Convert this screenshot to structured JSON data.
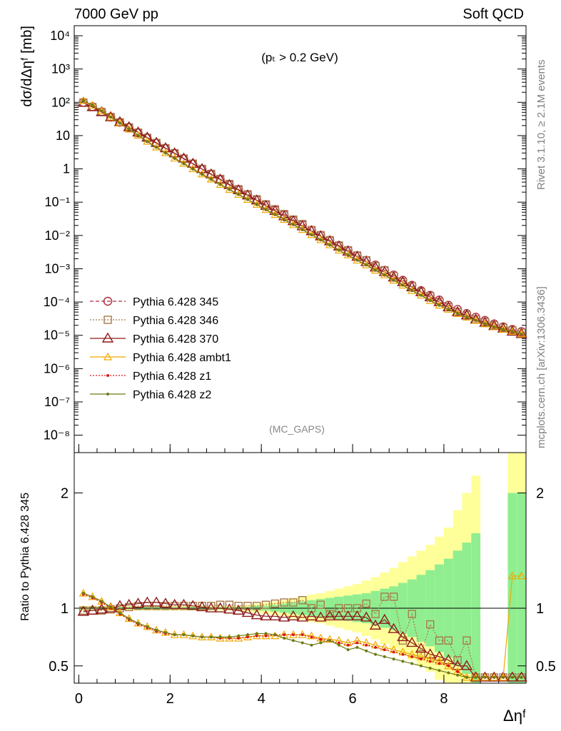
{
  "header": {
    "left": "7000 GeV pp",
    "right": "Soft QCD"
  },
  "side_labels": {
    "rivet": "Rivet 3.1.10, ≥ 2.1M events",
    "mcplots": "mcplots.cern.ch [arXiv:1306.3436]"
  },
  "annotations": {
    "cut": "(p_T > 0.2 GeV)",
    "analysis": "(MC_GAPS)"
  },
  "axes": {
    "ylabel_top": "dσ/dΔη^F [mb]",
    "ylabel_bottom": "Ratio to Pythia 6.428 345",
    "xlabel": "Δη^F"
  },
  "colors": {
    "p345": "#b02a3b",
    "p346": "#a87a4a",
    "p370": "#8e1a1a",
    "ambt1": "#f0a800",
    "z1": "#d81818",
    "z2": "#6e7a14",
    "band_inner": "#90ee90",
    "band_outer": "#ffff99"
  },
  "legend": [
    {
      "label": "Pythia 6.428 345"
    },
    {
      "label": "Pythia 6.428 346"
    },
    {
      "label": "Pythia 6.428 370"
    },
    {
      "label": "Pythia 6.428 ambt1"
    },
    {
      "label": "Pythia 6.428 z1"
    },
    {
      "label": "Pythia 6.428 z2"
    }
  ],
  "chart_data": [
    {
      "type": "scatter",
      "log_y": true,
      "xlim": [
        -0.1,
        9.8
      ],
      "ylim": [
        3e-09,
        20000.0
      ],
      "x_ticks": [
        0,
        2,
        4,
        6,
        8
      ],
      "y_ticks": [
        "10^4",
        "10^3",
        "10^2",
        "10",
        "1",
        "10^-1",
        "10^-2",
        "10^-3",
        "10^-4",
        "10^-5",
        "10^-6",
        "10^-7",
        "10^-8"
      ],
      "x": [
        0.1,
        0.3,
        0.5,
        0.7,
        0.9,
        1.1,
        1.3,
        1.5,
        1.7,
        1.9,
        2.1,
        2.3,
        2.5,
        2.7,
        2.9,
        3.1,
        3.3,
        3.5,
        3.7,
        3.9,
        4.1,
        4.3,
        4.5,
        4.7,
        4.9,
        5.1,
        5.3,
        5.5,
        5.7,
        5.9,
        6.1,
        6.3,
        6.5,
        6.7,
        6.9,
        7.1,
        7.3,
        7.5,
        7.7,
        7.9,
        8.1,
        8.3,
        8.5,
        8.7,
        8.9,
        9.1,
        9.3,
        9.5,
        9.7
      ],
      "series": [
        {
          "name": "Pythia 6.428 345",
          "values": [
            100,
            74,
            52,
            36,
            25,
            17.5,
            12,
            8.4,
            5.9,
            4.1,
            2.9,
            2.0,
            1.4,
            0.98,
            0.69,
            0.48,
            0.34,
            0.24,
            0.17,
            0.12,
            0.084,
            0.059,
            0.042,
            0.029,
            0.021,
            0.0145,
            0.0102,
            0.0072,
            0.005,
            0.0036,
            0.0025,
            0.0018,
            0.0013,
            0.0009,
            0.00065,
            0.00045,
            0.00032,
            0.00022,
            0.00016,
            0.000115,
            8e-05,
            6e-05,
            4.5e-05,
            3.5e-05,
            2.8e-05,
            2.2e-05,
            1.8e-05,
            1.5e-05,
            1.3e-05
          ]
        },
        {
          "name": "Pythia 6.428 346",
          "values": [
            98,
            72,
            51,
            36,
            25,
            17.7,
            12.3,
            8.6,
            6.0,
            4.2,
            2.95,
            2.05,
            1.44,
            1.0,
            0.71,
            0.5,
            0.35,
            0.245,
            0.172,
            0.122,
            0.086,
            0.061,
            0.044,
            0.03,
            0.022,
            0.0145,
            0.0102,
            0.0072,
            0.005,
            0.0036,
            0.0025,
            0.0018,
            0.0012,
            0.0009,
            0.0006,
            0.0004,
            0.0003,
            0.0002,
            0.00015,
            0.0001,
            7e-05,
            5e-05,
            4e-05,
            3e-05,
            2.5e-05,
            2e-05,
            1.7e-05,
            1.4e-05,
            1.2e-05
          ]
        },
        {
          "name": "Pythia 6.428 370",
          "values": [
            97,
            72,
            51,
            36,
            25.5,
            18,
            12.5,
            8.8,
            6.1,
            4.2,
            2.95,
            2.06,
            1.43,
            0.99,
            0.69,
            0.48,
            0.33,
            0.23,
            0.16,
            0.113,
            0.078,
            0.055,
            0.038,
            0.027,
            0.019,
            0.0135,
            0.0095,
            0.0067,
            0.0047,
            0.0033,
            0.0023,
            0.0016,
            0.0011,
            0.0008,
            0.00055,
            0.0004,
            0.00028,
            0.0002,
            0.00014,
            0.0001,
            7e-05,
            5e-05,
            4e-05,
            3e-05,
            2.4e-05,
            1.9e-05,
            1.6e-05,
            1.3e-05,
            1.1e-05
          ]
        },
        {
          "name": "Pythia 6.428 ambt1",
          "values": [
            112,
            81,
            55,
            36,
            24,
            15.5,
            10.2,
            6.7,
            4.5,
            3.05,
            2.1,
            1.45,
            1.0,
            0.7,
            0.49,
            0.34,
            0.24,
            0.17,
            0.12,
            0.085,
            0.06,
            0.042,
            0.03,
            0.021,
            0.015,
            0.0105,
            0.0074,
            0.0052,
            0.0036,
            0.0026,
            0.0018,
            0.0013,
            0.0009,
            0.00065,
            0.00045,
            0.00032,
            0.00022,
            0.00016,
            0.00011,
            8e-05,
            6e-05,
            4.5e-05,
            3.5e-05,
            2.8e-05,
            2.2e-05,
            1.8e-05,
            1.5e-05,
            1.3e-05,
            1.1e-05
          ]
        },
        {
          "name": "Pythia 6.428 z1",
          "values": [
            111,
            80,
            54,
            35.5,
            23.5,
            15.3,
            10,
            6.6,
            4.45,
            3.0,
            2.07,
            1.43,
            0.99,
            0.69,
            0.48,
            0.34,
            0.24,
            0.17,
            0.12,
            0.084,
            0.059,
            0.042,
            0.029,
            0.021,
            0.0148,
            0.0104,
            0.0073,
            0.0051,
            0.0036,
            0.0025,
            0.0018,
            0.0013,
            0.0009,
            0.00064,
            0.00045,
            0.00032,
            0.00022,
            0.00016,
            0.00011,
            8e-05,
            6e-05,
            4.5e-05,
            3.5e-05,
            2.8e-05,
            2.2e-05,
            1.8e-05,
            1.5e-05,
            1.3e-05,
            1.1e-05
          ]
        },
        {
          "name": "Pythia 6.428 z2",
          "values": [
            112,
            81,
            55,
            36,
            23.8,
            15.5,
            10.1,
            6.6,
            4.45,
            3.0,
            2.06,
            1.42,
            0.98,
            0.68,
            0.48,
            0.34,
            0.24,
            0.17,
            0.12,
            0.085,
            0.06,
            0.042,
            0.03,
            0.021,
            0.015,
            0.0105,
            0.0074,
            0.0052,
            0.0036,
            0.0026,
            0.0018,
            0.0013,
            0.0009,
            0.00065,
            0.00045,
            0.00032,
            0.00022,
            0.00016,
            0.00011,
            8e-05,
            6e-05,
            4.5e-05,
            3.5e-05,
            2.8e-05,
            2.2e-05,
            1.8e-05,
            1.5e-05,
            1.3e-05,
            1.1e-05
          ]
        }
      ]
    },
    {
      "type": "scatter",
      "xlim": [
        -0.1,
        9.8
      ],
      "ylim": [
        0.35,
        2.35
      ],
      "x_ticks": [
        0,
        2,
        4,
        6,
        8
      ],
      "y_ticks": [
        0.5,
        1,
        2
      ],
      "reference_line": 1,
      "x": [
        0.1,
        0.3,
        0.5,
        0.7,
        0.9,
        1.1,
        1.3,
        1.5,
        1.7,
        1.9,
        2.1,
        2.3,
        2.5,
        2.7,
        2.9,
        3.1,
        3.3,
        3.5,
        3.7,
        3.9,
        4.1,
        4.3,
        4.5,
        4.7,
        4.9,
        5.1,
        5.3,
        5.5,
        5.7,
        5.9,
        6.1,
        6.3,
        6.5,
        6.7,
        6.9,
        7.1,
        7.3,
        7.5,
        7.7,
        7.9,
        8.1,
        8.3,
        8.5,
        8.7,
        8.9,
        9.1,
        9.3,
        9.5,
        9.7
      ],
      "bands": {
        "inner": [
          0.01,
          0.01,
          0.01,
          0.01,
          0.01,
          0.01,
          0.01,
          0.01,
          0.01,
          0.01,
          0.01,
          0.01,
          0.01,
          0.01,
          0.01,
          0.01,
          0.01,
          0.01,
          0.01,
          0.02,
          0.02,
          0.03,
          0.04,
          0.05,
          0.06,
          0.07,
          0.08,
          0.09,
          0.1,
          0.11,
          0.12,
          0.13,
          0.15,
          0.17,
          0.19,
          0.22,
          0.25,
          0.29,
          0.33,
          0.38,
          0.43,
          0.5,
          0.57,
          0.65,
          0.0,
          0.0,
          0.0,
          1.0,
          1.0
        ],
        "outer": [
          0.02,
          0.02,
          0.02,
          0.02,
          0.02,
          0.02,
          0.02,
          0.02,
          0.02,
          0.02,
          0.02,
          0.02,
          0.02,
          0.02,
          0.02,
          0.02,
          0.02,
          0.02,
          0.03,
          0.04,
          0.05,
          0.06,
          0.07,
          0.09,
          0.1,
          0.12,
          0.13,
          0.15,
          0.17,
          0.19,
          0.21,
          0.24,
          0.27,
          0.31,
          0.35,
          0.4,
          0.45,
          0.5,
          0.55,
          0.62,
          0.7,
          0.85,
          1.0,
          1.15,
          0.0,
          0.0,
          0.0,
          1.5,
          1.5
        ]
      },
      "series": [
        {
          "name": "Pythia 6.428 346",
          "values": [
            0.98,
            0.98,
            0.98,
            0.99,
            1.0,
            1.01,
            1.02,
            1.02,
            1.02,
            1.02,
            1.02,
            1.02,
            1.02,
            1.02,
            1.02,
            1.03,
            1.03,
            1.02,
            1.02,
            1.02,
            1.03,
            1.04,
            1.05,
            1.05,
            1.07,
            1.0,
            1.03,
            0.95,
            1.0,
            1.0,
            1.0,
            1.04,
            0.95,
            1.1,
            1.1,
            0.72,
            0.95,
            0.6,
            0.86,
            0.72,
            0.72,
            0.55,
            0.72,
            0.4,
            0.4,
            0.4,
            0.4,
            0.4,
            0.4
          ]
        },
        {
          "name": "Pythia 6.428 370",
          "values": [
            0.97,
            0.98,
            0.99,
            1.0,
            1.02,
            1.03,
            1.04,
            1.05,
            1.05,
            1.04,
            1.03,
            1.03,
            1.02,
            1.01,
            1.0,
            1.0,
            0.99,
            0.98,
            0.96,
            0.94,
            0.93,
            0.93,
            0.92,
            0.93,
            0.92,
            0.93,
            0.92,
            0.93,
            0.93,
            0.93,
            0.93,
            0.92,
            0.85,
            0.9,
            0.82,
            0.75,
            0.7,
            0.65,
            0.6,
            0.58,
            0.55,
            0.5,
            0.5,
            0.4,
            0.4,
            0.4,
            0.4,
            0.4,
            0.4
          ]
        },
        {
          "name": "Pythia 6.428 ambt1",
          "values": [
            1.13,
            1.1,
            1.06,
            1.01,
            0.96,
            0.91,
            0.87,
            0.84,
            0.81,
            0.79,
            0.77,
            0.77,
            0.76,
            0.75,
            0.75,
            0.74,
            0.74,
            0.74,
            0.75,
            0.76,
            0.76,
            0.76,
            0.77,
            0.77,
            0.77,
            0.76,
            0.74,
            0.73,
            0.72,
            0.7,
            0.72,
            0.7,
            0.68,
            0.66,
            0.64,
            0.62,
            0.6,
            0.58,
            0.56,
            0.54,
            0.5,
            0.45,
            0.4,
            0.4,
            0.4,
            0.4,
            0.4,
            1.28,
            1.28
          ]
        },
        {
          "name": "Pythia 6.428 z1",
          "values": [
            1.12,
            1.09,
            1.05,
            1.0,
            0.95,
            0.9,
            0.86,
            0.83,
            0.8,
            0.78,
            0.77,
            0.77,
            0.76,
            0.75,
            0.75,
            0.74,
            0.74,
            0.74,
            0.75,
            0.76,
            0.76,
            0.77,
            0.77,
            0.77,
            0.77,
            0.75,
            0.73,
            0.72,
            0.7,
            0.68,
            0.7,
            0.68,
            0.66,
            0.64,
            0.62,
            0.6,
            0.58,
            0.56,
            0.54,
            0.52,
            0.5,
            0.45,
            0.4,
            0.4,
            0.4,
            0.4,
            0.4,
            0.4,
            0.4
          ]
        },
        {
          "name": "Pythia 6.428 z2",
          "values": [
            1.13,
            1.1,
            1.06,
            1.01,
            0.96,
            0.91,
            0.87,
            0.84,
            0.81,
            0.79,
            0.77,
            0.77,
            0.76,
            0.75,
            0.75,
            0.75,
            0.75,
            0.76,
            0.77,
            0.78,
            0.78,
            0.77,
            0.74,
            0.72,
            0.7,
            0.68,
            0.7,
            0.72,
            0.68,
            0.64,
            0.66,
            0.63,
            0.6,
            0.58,
            0.56,
            0.54,
            0.52,
            0.5,
            0.48,
            0.46,
            0.44,
            0.42,
            0.4,
            0.4,
            0.4,
            0.4,
            0.4,
            0.4,
            0.4
          ]
        }
      ]
    }
  ]
}
